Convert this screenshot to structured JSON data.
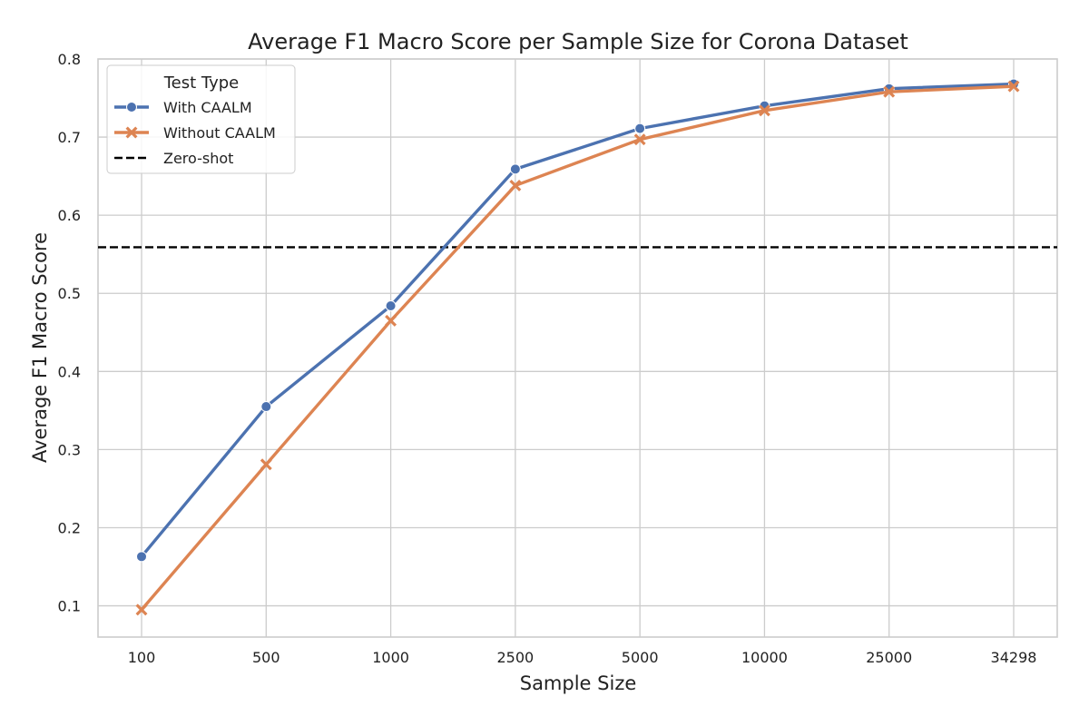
{
  "chart_data": {
    "type": "line",
    "title": "Average F1 Macro Score per Sample Size for Corona Dataset",
    "xlabel": "Sample Size",
    "ylabel": "Average F1 Macro Score",
    "categories": [
      "100",
      "500",
      "1000",
      "2500",
      "5000",
      "10000",
      "25000",
      "34298"
    ],
    "ylim": [
      0.06,
      0.8
    ],
    "yticks": [
      "0.1",
      "0.2",
      "0.3",
      "0.4",
      "0.5",
      "0.6",
      "0.7",
      "0.8"
    ],
    "grid": true,
    "legend": {
      "title": "Test Type",
      "placement": "top-left"
    },
    "series": [
      {
        "name": "With CAALM",
        "color": "#4c72b0",
        "marker": "circle",
        "values": [
          0.163,
          0.355,
          0.484,
          0.659,
          0.711,
          0.74,
          0.762,
          0.768
        ]
      },
      {
        "name": "Without CAALM",
        "color": "#dd8452",
        "marker": "x",
        "values": [
          0.095,
          0.281,
          0.465,
          0.638,
          0.697,
          0.734,
          0.758,
          0.765
        ]
      }
    ],
    "reference_line": {
      "name": "Zero-shot",
      "value": 0.559,
      "color": "#000000",
      "style": "dashed"
    }
  }
}
